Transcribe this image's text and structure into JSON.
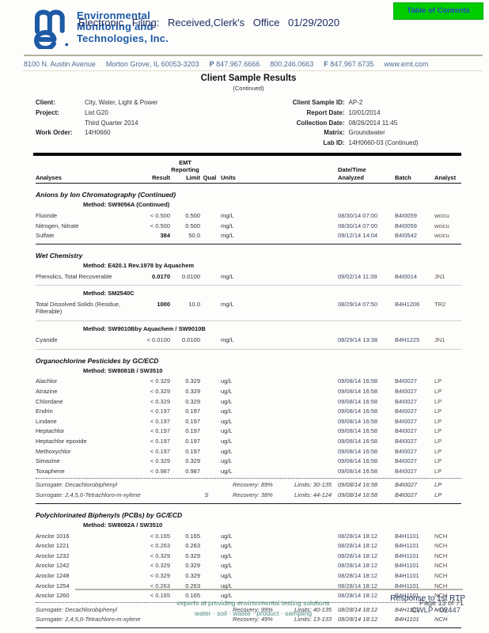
{
  "header": {
    "company_lines": [
      "Environmental",
      "Monitoring and",
      "Technologies, Inc."
    ],
    "efiling_text": "Electronic Filing: Received,Clerk's Office 01/29/2020",
    "toc_button_label": "Table of Contents",
    "address_items": [
      "8100 N. Austin Avenue",
      "Morton Grove, IL 60053-3203",
      "P 847.967.6666",
      "800.246.0663",
      "F 847.967.6735",
      "www.emt.com"
    ],
    "brand_color": "#1e5aa5",
    "toc_green": "#00cc00"
  },
  "title": {
    "main": "Client Sample Results",
    "sub": "(Continued)"
  },
  "info": {
    "left": [
      {
        "label": "Client:",
        "value": "City, Water, Light & Power"
      },
      {
        "label": "Project:",
        "value": "List G20"
      },
      {
        "label": "",
        "value": "Third Quarter 2014"
      },
      {
        "label": "Work Order:",
        "value": "14H0660"
      }
    ],
    "right": [
      {
        "label": "Client Sample ID:",
        "value": "AP-2"
      },
      {
        "label": "Report Date:",
        "value": "10/01/2014"
      },
      {
        "label": "Collection Date:",
        "value": "08/26/2014 11:45"
      },
      {
        "label": "Matrix:",
        "value": "Groundwater"
      },
      {
        "label": "Lab ID:",
        "value": "14H0660-03 (Continued)"
      }
    ]
  },
  "table": {
    "headers": {
      "emt": "EMT",
      "reporting": "Reporting",
      "analyses": "Analyses",
      "result": "Result",
      "limit": "Limit",
      "qual": "Qual",
      "units": "Units",
      "datetime": "Date/Time",
      "analyzed": "Analyzed",
      "batch": "Batch",
      "analyst": "Analyst"
    },
    "sections": [
      {
        "name": "Anions by Ion Chromatography (Continued)",
        "methods": [
          {
            "method": "SW9056A (Continued)",
            "rows": [
              {
                "analyte": "Fluoride",
                "result": "< 0.500",
                "limit": "0.500",
                "qual": "",
                "units": "mg/L",
                "analyzed": "08/30/14 07:00",
                "batch": "B4I0059",
                "analyst": "wcicu"
              },
              {
                "analyte": "Nitrogen, Nitrate",
                "result": "< 0.500",
                "limit": "0.500",
                "qual": "",
                "units": "mg/L",
                "analyzed": "08/30/14 07:00",
                "batch": "B4I0059",
                "analyst": "wcicu"
              },
              {
                "analyte": "Sulfate",
                "result": "384",
                "bold": true,
                "limit": "50.0",
                "qual": "",
                "units": "mg/L",
                "analyzed": "09/12/14 14:04",
                "batch": "B4I0542",
                "analyst": "wcicu"
              }
            ],
            "divider": "dark"
          }
        ]
      },
      {
        "name": "Wet Chemistry",
        "methods": [
          {
            "method": "E420.1 Rev.1978 by Aquachem",
            "rows": [
              {
                "analyte": "Phenolics, Total Recoverable",
                "result": "0.0170",
                "bold": true,
                "limit": "0.0100",
                "qual": "",
                "units": "mg/L",
                "analyzed": "09/02/14 11:39",
                "batch": "B4I0014",
                "analyst": "JN1"
              }
            ],
            "divider": "light"
          },
          {
            "method": "SM2540C",
            "rows": [
              {
                "analyte": "Total Dissolved Solids (Residue, Filterable)",
                "result": "1000",
                "bold": true,
                "limit": "10.0",
                "qual": "",
                "units": "mg/L",
                "analyzed": "08/29/14 07:50",
                "batch": "B4H1206",
                "analyst": "TR2"
              }
            ],
            "divider": "light"
          },
          {
            "method": "SW9010Bby Aquachem / SW9010B",
            "rows": [
              {
                "analyte": "Cyanide",
                "result": "< 0.0100",
                "limit": "0.0100",
                "qual": "",
                "units": "mg/L",
                "analyzed": "08/29/14 13:38",
                "batch": "B4H1225",
                "analyst": "JN1"
              }
            ],
            "divider": "light"
          }
        ]
      },
      {
        "name": "Organochlorine Pesticides by GC/ECD",
        "methods": [
          {
            "method": "SW8081B / SW3510",
            "rows": [
              {
                "analyte": "Alachlor",
                "result": "< 0.329",
                "limit": "0.329",
                "qual": "",
                "units": "ug/L",
                "analyzed": "09/08/14 16:58",
                "batch": "B4I0027",
                "analyst": "LP"
              },
              {
                "analyte": "Atrazine",
                "result": "< 0.329",
                "limit": "0.329",
                "qual": "",
                "units": "ug/L",
                "analyzed": "09/08/14 16:58",
                "batch": "B4I0027",
                "analyst": "LP"
              },
              {
                "analyte": "Chlordane",
                "result": "< 0.329",
                "limit": "0.329",
                "qual": "",
                "units": "ug/L",
                "analyzed": "09/08/14 16:58",
                "batch": "B4I0027",
                "analyst": "LP"
              },
              {
                "analyte": "Endrin",
                "result": "< 0.197",
                "limit": "0.197",
                "qual": "",
                "units": "ug/L",
                "analyzed": "09/08/14 16:58",
                "batch": "B4I0027",
                "analyst": "LP"
              },
              {
                "analyte": "Lindane",
                "result": "< 0.197",
                "limit": "0.197",
                "qual": "",
                "units": "ug/L",
                "analyzed": "09/08/14 16:58",
                "batch": "B4I0027",
                "analyst": "LP"
              },
              {
                "analyte": "Heptachlor",
                "result": "< 0.197",
                "limit": "0.197",
                "qual": "",
                "units": "ug/L",
                "analyzed": "09/08/14 16:58",
                "batch": "B4I0027",
                "analyst": "LP"
              },
              {
                "analyte": "Heptachlor epoxide",
                "result": "< 0.197",
                "limit": "0.197",
                "qual": "",
                "units": "ug/L",
                "analyzed": "09/08/14 16:58",
                "batch": "B4I0027",
                "analyst": "LP"
              },
              {
                "analyte": "Methoxychlor",
                "result": "< 0.197",
                "limit": "0.197",
                "qual": "",
                "units": "ug/L",
                "analyzed": "09/08/14 16:58",
                "batch": "B4I0027",
                "analyst": "LP"
              },
              {
                "analyte": "Simazine",
                "result": "< 0.329",
                "limit": "0.329",
                "qual": "",
                "units": "ug/L",
                "analyzed": "09/08/14 16:58",
                "batch": "B4I0027",
                "analyst": "LP"
              },
              {
                "analyte": "Toxaphene",
                "result": "< 0.987",
                "limit": "0.987",
                "qual": "",
                "units": "ug/L",
                "analyzed": "09/08/14 16:58",
                "batch": "B4I0027",
                "analyst": "LP"
              }
            ]
          }
        ],
        "surrogates": [
          {
            "name": "Surrogate: Decachlorobiphenyl",
            "qual": "",
            "recovery": "Recovery: 89%",
            "limits": "Limits: 30-135",
            "analyzed": "09/08/14 16:58",
            "batch": "B4I0027",
            "analyst": "LP"
          },
          {
            "name": "Surrogate: 2,4,5,6-Tetrachloro-m-xylene",
            "qual": "S",
            "recovery": "Recovery: 38%",
            "limits": "Limits: 44-124",
            "analyzed": "09/08/14 16:58",
            "batch": "B4I0027",
            "analyst": "LP"
          }
        ],
        "divider": "dark"
      },
      {
        "name": "Polychlorinated Biphenyls (PCBs) by GC/ECD",
        "methods": [
          {
            "method": "SW8082A / SW3510",
            "rows": [
              {
                "analyte": "Aroclor 1016",
                "result": "< 0.165",
                "limit": "0.165",
                "qual": "",
                "units": "ug/L",
                "analyzed": "08/28/14 18:12",
                "batch": "B4H1101",
                "analyst": "NCH"
              },
              {
                "analyte": "Aroclor 1221",
                "result": "< 0.263",
                "limit": "0.263",
                "qual": "",
                "units": "ug/L",
                "analyzed": "08/28/14 18:12",
                "batch": "B4H1101",
                "analyst": "NCH"
              },
              {
                "analyte": "Aroclor 1232",
                "result": "< 0.329",
                "limit": "0.329",
                "qual": "",
                "units": "ug/L",
                "analyzed": "08/28/14 18:12",
                "batch": "B4H1101",
                "analyst": "NCH"
              },
              {
                "analyte": "Aroclor 1242",
                "result": "< 0.329",
                "limit": "0.329",
                "qual": "",
                "units": "ug/L",
                "analyzed": "08/28/14 18:12",
                "batch": "B4H1101",
                "analyst": "NCH"
              },
              {
                "analyte": "Aroclor 1248",
                "result": "< 0.329",
                "limit": "0.329",
                "qual": "",
                "units": "ug/L",
                "analyzed": "08/28/14 18:12",
                "batch": "B4H1101",
                "analyst": "NCH"
              },
              {
                "analyte": "Aroclor 1254",
                "result": "< 0.263",
                "limit": "0.263",
                "qual": "",
                "units": "ug/L",
                "analyzed": "08/28/14 18:12",
                "batch": "B4H1101",
                "analyst": "NCH"
              },
              {
                "analyte": "Aroclor 1260",
                "result": "< 0.165",
                "limit": "0.165",
                "qual": "",
                "units": "ug/L",
                "analyzed": "08/28/14 18:12",
                "batch": "B4H1101",
                "analyst": "NCH"
              }
            ]
          }
        ],
        "surrogates": [
          {
            "name": "Surrogate: Decachlorobiphenyl",
            "qual": "",
            "recovery": "Recovery: 99%",
            "limits": "Limits: 40-135",
            "analyzed": "08/28/14 18:12",
            "batch": "B4H1101",
            "analyst": "NCH"
          },
          {
            "name": "Surrogate: 2,4,5,6-Tetrachloro-m-xylene",
            "qual": "",
            "recovery": "Recovery: 49%",
            "limits": "Limits: 13-133",
            "analyzed": "08/28/14 18:12",
            "batch": "B4H1101",
            "analyst": "NCH"
          }
        ],
        "divider": "dark"
      }
    ]
  },
  "footer": {
    "tagline1": "experts at providing environmental testing solutions",
    "tagline2": "water  ·  soil  ·  waste  ·  product  ·  sampling",
    "stamp1": "Response to 1st RTP",
    "stamp2": "Page 13 of 71",
    "stamp3": "CWLP - 02447"
  }
}
